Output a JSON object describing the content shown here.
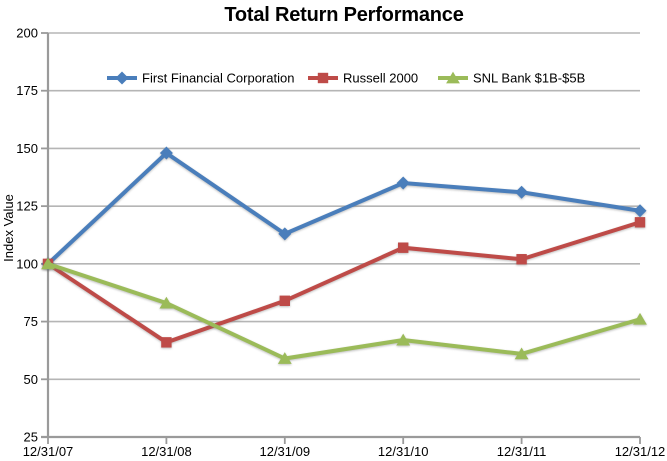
{
  "chart_data": {
    "type": "line",
    "title": "Total Return Performance",
    "ylabel": "Index Value",
    "xlabel": "",
    "categories": [
      "12/31/07",
      "12/31/08",
      "12/31/09",
      "12/31/10",
      "12/31/11",
      "12/31/12"
    ],
    "series": [
      {
        "name": "First Financial Corporation",
        "color": "#4A7EBB",
        "marker": "diamond",
        "values": [
          100,
          148,
          113,
          135,
          131,
          123
        ]
      },
      {
        "name": "Russell 2000",
        "color": "#BE4B48",
        "marker": "square",
        "values": [
          100,
          66,
          84,
          107,
          102,
          118
        ]
      },
      {
        "name": "SNL Bank $1B-$5B",
        "color": "#9BBB59",
        "marker": "triangle",
        "values": [
          100,
          83,
          59,
          67,
          61,
          76
        ]
      }
    ],
    "ylim": [
      25,
      200
    ],
    "yticks": [
      200,
      175,
      150,
      125,
      100,
      75,
      50,
      25
    ],
    "grid": true,
    "legend_position": "top-inside",
    "colors": {
      "gridline": "#b5b5b5",
      "axis": "#9a9a9a",
      "text": "#000000",
      "background": "#ffffff"
    }
  }
}
